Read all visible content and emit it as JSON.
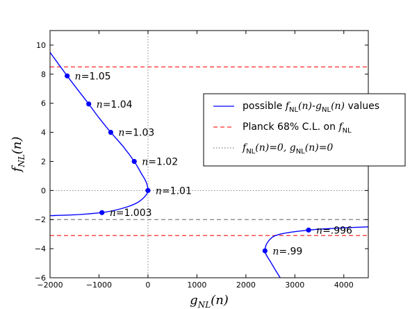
{
  "chart_data": {
    "type": "line",
    "xlabel": {
      "main": "g",
      "sub": "NL",
      "arg": "(n)"
    },
    "ylabel": {
      "main": "f",
      "sub": "NL",
      "arg": "(n)"
    },
    "xlim": [
      -2000,
      4500
    ],
    "ylim": [
      -6,
      11
    ],
    "xticks": [
      -2000,
      -1000,
      0,
      1000,
      2000,
      3000,
      4000
    ],
    "xtick_labels": [
      "−2000",
      "−1000",
      "0",
      "1000",
      "2000",
      "3000",
      "4000"
    ],
    "yticks": [
      -6,
      -4,
      -2,
      0,
      2,
      4,
      6,
      8,
      10
    ],
    "ytick_labels": [
      "−6",
      "−4",
      "−2",
      "0",
      "2",
      "4",
      "6",
      "8",
      "10"
    ],
    "series": [
      {
        "name": "possible f_NL(n)-g_NL(n) values",
        "color": "#0000ff",
        "style": "solid",
        "branches": [
          [
            [
              -2000,
              -1.73
            ],
            [
              -1500,
              -1.67
            ],
            [
              -1000,
              -1.54
            ],
            [
              -700,
              -1.38
            ],
            [
              -400,
              -1.1
            ],
            [
              -200,
              -0.8
            ],
            [
              -60,
              -0.4
            ],
            [
              0,
              0.0
            ],
            [
              -40,
              0.6
            ],
            [
              -140,
              1.2
            ],
            [
              -280,
              2.0
            ],
            [
              -500,
              3.0
            ],
            [
              -760,
              4.0
            ],
            [
              -1000,
              5.0
            ],
            [
              -1210,
              5.95
            ],
            [
              -1450,
              7.0
            ],
            [
              -1650,
              7.88
            ],
            [
              -2000,
              9.5
            ]
          ],
          [
            [
              2700,
              -6.0
            ],
            [
              2520,
              -5.0
            ],
            [
              2390,
              -4.15
            ],
            [
              2480,
              -3.4
            ],
            [
              2700,
              -3.0
            ],
            [
              3280,
              -2.72
            ],
            [
              3800,
              -2.6
            ],
            [
              4500,
              -2.5
            ]
          ]
        ]
      },
      {
        "name": "Planck 68% C.L. on f_NL",
        "color": "#ff2a2a",
        "style": "dashed",
        "hlines": [
          8.5,
          -3.1
        ]
      },
      {
        "name": "f_NL(n)=0, g_NL(n)=0",
        "color": "#808080",
        "style": "dotted",
        "hline": 0,
        "vline": 0
      }
    ],
    "extra_hlines": [
      {
        "y": -2.0,
        "color": "#808080",
        "style": "dashed"
      }
    ],
    "points": [
      {
        "x": -1650,
        "y": 7.88,
        "label": "1.05"
      },
      {
        "x": -1210,
        "y": 5.95,
        "label": "1.04"
      },
      {
        "x": -760,
        "y": 4.0,
        "label": "1.03"
      },
      {
        "x": -280,
        "y": 2.0,
        "label": "1.02"
      },
      {
        "x": 0,
        "y": 0.0,
        "label": "1.01"
      },
      {
        "x": -940,
        "y": -1.52,
        "label": "1.003"
      },
      {
        "x": 3280,
        "y": -2.72,
        "label": ".996"
      },
      {
        "x": 2390,
        "y": -4.15,
        "label": ".99"
      }
    ],
    "point_prefix": "n=",
    "legend": {
      "placement": "right",
      "entries": [
        {
          "kind": "solid",
          "color": "#0000ff",
          "text_before": "possible ",
          "math": [
            [
              "f",
              "NL",
              "(n)"
            ],
            [
              "g",
              "NL",
              "(n)"
            ]
          ],
          "math_sep": "-",
          "text_after": " values"
        },
        {
          "kind": "dashed",
          "color": "#ff2a2a",
          "text_before": "Planck ",
          "text_mid": "68% C.L. on ",
          "math": [
            [
              "f",
              "NL",
              ""
            ]
          ],
          "math_sep": "",
          "text_after": ""
        },
        {
          "kind": "dotted",
          "color": "#808080",
          "text_before": "",
          "math": [
            [
              "f",
              "NL",
              "(n)=0, "
            ],
            [
              "g",
              "NL",
              "(n)=0"
            ]
          ],
          "math_sep": "",
          "text_after": ""
        }
      ]
    }
  }
}
